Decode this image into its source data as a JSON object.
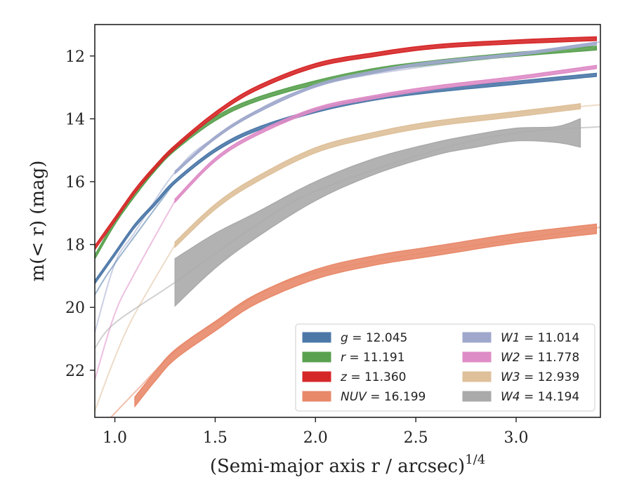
{
  "chart_data": {
    "type": "line",
    "xlabel": "(Semi-major axis r / arcsec)",
    "xlabel_sup": "1/4",
    "ylabel": "m(< r) (mag)",
    "xlim": [
      0.9,
      3.42
    ],
    "ylim": [
      23.5,
      11.0
    ],
    "x_inverted": false,
    "y_inverted": true,
    "xticks": [
      1.0,
      1.5,
      2.0,
      2.5,
      3.0
    ],
    "xtick_labels": [
      "1.0",
      "1.5",
      "2.0",
      "2.5",
      "3.0"
    ],
    "yticks": [
      12,
      14,
      16,
      18,
      20,
      22
    ],
    "ytick_labels": [
      "12",
      "14",
      "16",
      "18",
      "20",
      "22"
    ],
    "legend": {
      "placement": "lower-right",
      "columns": 2,
      "entries": [
        {
          "var": "g",
          "value": "12.045",
          "color": "#4c78a8"
        },
        {
          "var": "r",
          "value": "11.191",
          "color": "#59a14f"
        },
        {
          "var": "z",
          "value": "11.360",
          "color": "#d62728"
        },
        {
          "var": "NUV",
          "value": "16.199",
          "color": "#e8896a"
        },
        {
          "var": "W1",
          "value": "11.014",
          "color": "#9fa8cc"
        },
        {
          "var": "W2",
          "value": "11.778",
          "color": "#de8cc6"
        },
        {
          "var": "W3",
          "value": "12.939",
          "color": "#dec09a"
        },
        {
          "var": "W4",
          "value": "14.194",
          "color": "#aaaaaa"
        }
      ]
    },
    "series": [
      {
        "key": "g",
        "color": "#4c78a8",
        "x": [
          0.9,
          1.0,
          1.1,
          1.2,
          1.3,
          1.5,
          1.7,
          2.0,
          2.3,
          2.6,
          3.0,
          3.4
        ],
        "y": [
          19.2,
          18.3,
          17.4,
          16.7,
          16.0,
          15.0,
          14.35,
          13.75,
          13.35,
          13.1,
          12.85,
          12.6
        ],
        "band": 0.05
      },
      {
        "key": "r",
        "color": "#59a14f",
        "x": [
          0.9,
          1.0,
          1.1,
          1.2,
          1.3,
          1.5,
          1.7,
          2.0,
          2.3,
          2.6,
          3.0,
          3.4
        ],
        "y": [
          18.4,
          17.3,
          16.4,
          15.6,
          14.95,
          14.0,
          13.4,
          12.85,
          12.45,
          12.2,
          11.95,
          11.75
        ],
        "band": 0.06
      },
      {
        "key": "z",
        "color": "#d62728",
        "x": [
          0.9,
          1.0,
          1.1,
          1.2,
          1.3,
          1.5,
          1.7,
          2.0,
          2.3,
          2.6,
          3.0,
          3.4
        ],
        "y": [
          18.1,
          17.2,
          16.3,
          15.55,
          14.9,
          13.85,
          13.05,
          12.3,
          11.95,
          11.7,
          11.55,
          11.45
        ],
        "band": 0.06
      },
      {
        "key": "NUV",
        "color": "#e8896a",
        "x": [
          1.1,
          1.2,
          1.3,
          1.5,
          1.7,
          2.0,
          2.3,
          2.6,
          3.0,
          3.4
        ],
        "y": [
          23.0,
          22.2,
          21.5,
          20.6,
          19.75,
          18.95,
          18.5,
          18.2,
          17.8,
          17.5
        ],
        "band": 0.15
      },
      {
        "key": "W1",
        "color": "#9fa8cc",
        "x": [
          1.3,
          1.5,
          1.7,
          2.0,
          2.3,
          2.6,
          3.0,
          3.4
        ],
        "y": [
          15.7,
          14.6,
          13.8,
          12.95,
          12.5,
          12.2,
          11.95,
          11.6
        ],
        "band": 0.04
      },
      {
        "key": "W2",
        "color": "#de8cc6",
        "x": [
          1.3,
          1.5,
          1.7,
          2.0,
          2.3,
          2.6,
          3.0,
          3.4
        ],
        "y": [
          16.6,
          15.3,
          14.5,
          13.7,
          13.3,
          13.0,
          12.7,
          12.35
        ],
        "band": 0.05
      },
      {
        "key": "W3",
        "color": "#dec09a",
        "x": [
          1.3,
          1.5,
          1.7,
          2.0,
          2.3,
          2.6,
          3.0,
          3.32
        ],
        "y": [
          18.0,
          16.8,
          15.95,
          15.0,
          14.5,
          14.15,
          13.85,
          13.6
        ],
        "band": 0.08
      },
      {
        "key": "W4",
        "color": "#aaaaaa",
        "x": [
          1.3,
          1.5,
          1.7,
          2.0,
          2.3,
          2.6,
          2.8,
          3.0,
          3.2,
          3.32
        ],
        "y": [
          19.2,
          18.2,
          17.4,
          16.3,
          15.5,
          14.95,
          14.7,
          14.5,
          14.5,
          14.45
        ],
        "band_lo": [
          0.75,
          0.55,
          0.4,
          0.3,
          0.25,
          0.2,
          0.2,
          0.2,
          0.25,
          0.45
        ],
        "band_hi": [
          0.75,
          0.55,
          0.4,
          0.3,
          0.25,
          0.2,
          0.2,
          0.2,
          0.25,
          0.45
        ]
      }
    ],
    "extrapolations": [
      {
        "key": "W1",
        "color": "#9fa8cc",
        "x": [
          0.9,
          1.0,
          1.1,
          1.3,
          1.5,
          2.0,
          3.0,
          3.42
        ],
        "y": [
          20.8,
          18.6,
          17.6,
          15.7,
          14.6,
          12.95,
          11.95,
          11.55
        ]
      },
      {
        "key": "g",
        "color": "#4c78a8",
        "x": [
          0.9,
          1.0,
          1.3
        ],
        "y": [
          19.6,
          18.6,
          16.0
        ]
      },
      {
        "key": "W2",
        "color": "#de8cc6",
        "x": [
          0.9,
          1.0,
          1.1,
          1.3
        ],
        "y": [
          22.3,
          20.2,
          18.9,
          16.6
        ]
      },
      {
        "key": "W3",
        "color": "#dec09a",
        "x": [
          0.9,
          1.0,
          1.1,
          1.3
        ],
        "y": [
          23.3,
          21.6,
          20.2,
          18.0
        ]
      },
      {
        "key": "W4",
        "color": "#aaaaaa",
        "x": [
          0.9,
          1.0,
          1.3,
          1.7,
          2.0,
          2.6,
          3.0,
          3.42
        ],
        "y": [
          21.3,
          20.5,
          19.2,
          17.4,
          16.3,
          15.0,
          14.45,
          14.25
        ]
      },
      {
        "key": "NUV",
        "color": "#e8896a",
        "x": [
          0.98,
          1.1,
          1.3,
          1.5,
          2.0,
          3.42
        ],
        "y": [
          23.5,
          22.7,
          21.4,
          20.5,
          18.9,
          17.45
        ]
      },
      {
        "key": "W3",
        "color": "#dec09a",
        "x": [
          3.0,
          3.42
        ],
        "y": [
          13.8,
          13.55
        ]
      }
    ]
  }
}
